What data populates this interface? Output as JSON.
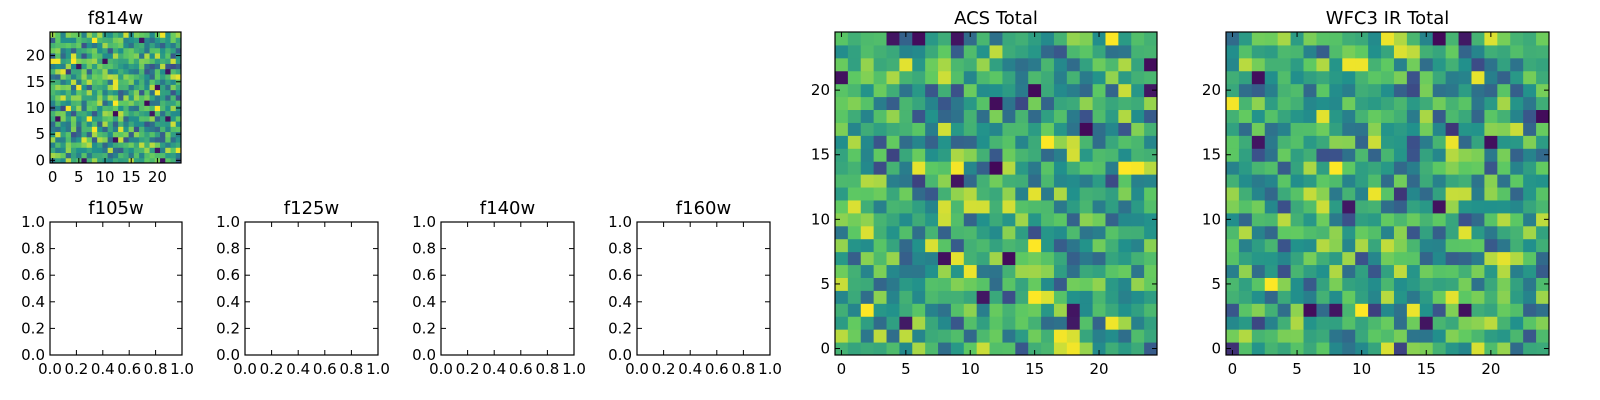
{
  "chart_data": [
    {
      "id": "f814w",
      "type": "heatmap",
      "title": "f814w",
      "grid_size": 25,
      "xlim": [
        -0.5,
        24.5
      ],
      "ylim": [
        -0.5,
        24.5
      ],
      "xticks": [
        0,
        5,
        10,
        15,
        20
      ],
      "yticks": [
        0,
        5,
        10,
        15,
        20
      ],
      "colormap": "viridis",
      "pixel_values": "random noise field, values estimated between 0 and 1"
    },
    {
      "id": "f105w",
      "type": "heatmap",
      "title": "f105w",
      "empty": true,
      "xlim": [
        0,
        1
      ],
      "ylim": [
        0,
        1
      ],
      "xticks": [
        0.0,
        0.2,
        0.4,
        0.6,
        0.8,
        1.0
      ],
      "yticks": [
        0.0,
        0.2,
        0.4,
        0.6,
        0.8,
        1.0
      ]
    },
    {
      "id": "f125w",
      "type": "heatmap",
      "title": "f125w",
      "empty": true,
      "xlim": [
        0,
        1
      ],
      "ylim": [
        0,
        1
      ],
      "xticks": [
        0.0,
        0.2,
        0.4,
        0.6,
        0.8,
        1.0
      ],
      "yticks": [
        0.0,
        0.2,
        0.4,
        0.6,
        0.8,
        1.0
      ]
    },
    {
      "id": "f140w",
      "type": "heatmap",
      "title": "f140w",
      "empty": true,
      "xlim": [
        0,
        1
      ],
      "ylim": [
        0,
        1
      ],
      "xticks": [
        0.0,
        0.2,
        0.4,
        0.6,
        0.8,
        1.0
      ],
      "yticks": [
        0.0,
        0.2,
        0.4,
        0.6,
        0.8,
        1.0
      ]
    },
    {
      "id": "f160w",
      "type": "heatmap",
      "title": "f160w",
      "empty": true,
      "xlim": [
        0,
        1
      ],
      "ylim": [
        0,
        1
      ],
      "xticks": [
        0.0,
        0.2,
        0.4,
        0.6,
        0.8,
        1.0
      ],
      "yticks": [
        0.0,
        0.2,
        0.4,
        0.6,
        0.8,
        1.0
      ]
    },
    {
      "id": "acs-total",
      "type": "heatmap",
      "title": "ACS Total",
      "grid_size": 25,
      "xlim": [
        -0.5,
        24.5
      ],
      "ylim": [
        -0.5,
        24.5
      ],
      "xticks": [
        0,
        5,
        10,
        15,
        20
      ],
      "yticks": [
        0,
        5,
        10,
        15,
        20
      ],
      "colormap": "viridis"
    },
    {
      "id": "wfc3-ir-total",
      "type": "heatmap",
      "title": "WFC3 IR Total",
      "grid_size": 25,
      "xlim": [
        -0.5,
        24.5
      ],
      "ylim": [
        -0.5,
        24.5
      ],
      "xticks": [
        0,
        5,
        10,
        15,
        20
      ],
      "yticks": [
        0,
        5,
        10,
        15,
        20
      ],
      "colormap": "viridis"
    }
  ],
  "colors": {
    "viridis_dark": "#440154",
    "viridis_blue": "#3b528b",
    "viridis_teal": "#21918c",
    "viridis_green": "#5ec962",
    "viridis_yellow": "#fde725",
    "frame": "#000000"
  }
}
